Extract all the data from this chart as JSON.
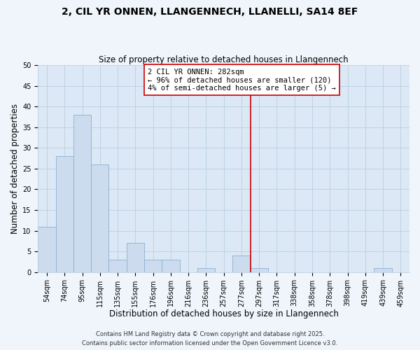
{
  "title": "2, CIL YR ONNEN, LLANGENNECH, LLANELLI, SA14 8EF",
  "subtitle": "Size of property relative to detached houses in Llangennech",
  "xlabel": "Distribution of detached houses by size in Llangennech",
  "ylabel": "Number of detached properties",
  "bar_labels": [
    "54sqm",
    "74sqm",
    "95sqm",
    "115sqm",
    "135sqm",
    "155sqm",
    "176sqm",
    "196sqm",
    "216sqm",
    "236sqm",
    "257sqm",
    "277sqm",
    "297sqm",
    "317sqm",
    "338sqm",
    "358sqm",
    "378sqm",
    "398sqm",
    "419sqm",
    "439sqm",
    "459sqm"
  ],
  "bar_values": [
    11,
    28,
    38,
    26,
    3,
    7,
    3,
    3,
    0,
    1,
    0,
    4,
    1,
    0,
    0,
    0,
    0,
    0,
    0,
    1,
    0
  ],
  "bar_color": "#ccdcee",
  "bar_edge_color": "#8ab0d0",
  "vline_index": 11,
  "vline_color": "#cc0000",
  "annotation_title": "2 CIL YR ONNEN: 282sqm",
  "annotation_line1": "← 96% of detached houses are smaller (120)",
  "annotation_line2": "4% of semi-detached houses are larger (5) →",
  "annotation_box_color": "#ffffff",
  "annotation_box_edge": "#cc0000",
  "ylim": [
    0,
    50
  ],
  "yticks": [
    0,
    5,
    10,
    15,
    20,
    25,
    30,
    35,
    40,
    45,
    50
  ],
  "bg_color": "#dce8f5",
  "fig_bg_color": "#f0f5fb",
  "footnote1": "Contains HM Land Registry data © Crown copyright and database right 2025.",
  "footnote2": "Contains public sector information licensed under the Open Government Licence v3.0.",
  "title_fontsize": 10,
  "subtitle_fontsize": 8.5,
  "xlabel_fontsize": 8.5,
  "ylabel_fontsize": 8.5,
  "tick_fontsize": 7,
  "annotation_fontsize": 7.5,
  "footnote_fontsize": 6
}
